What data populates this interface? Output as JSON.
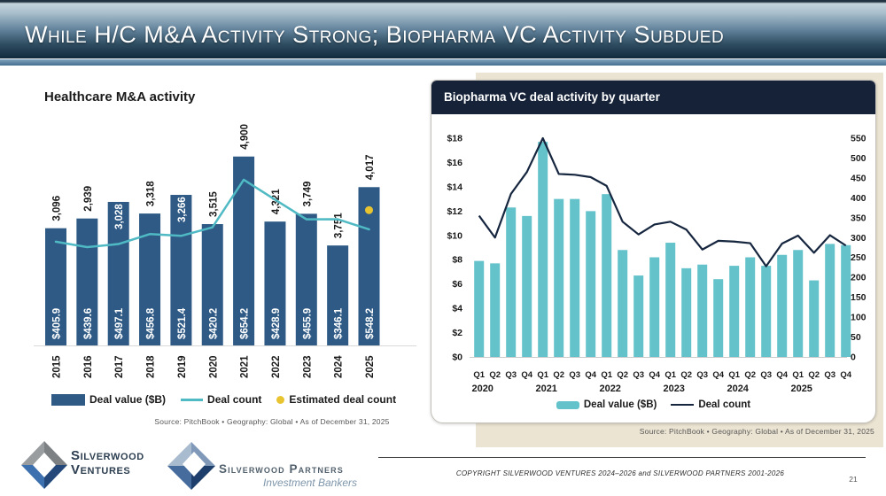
{
  "slide": {
    "title": "While H/C M&A Activity Strong; Biopharma VC Activity Subdued"
  },
  "chart_data": [
    {
      "type": "bar+line",
      "title": "Healthcare M&A activity",
      "categories": [
        "2015",
        "2016",
        "2017",
        "2018",
        "2019",
        "2020",
        "2021",
        "2022",
        "2023",
        "2024",
        "2025"
      ],
      "bar_series": {
        "name": "Deal value ($B)",
        "values": [
          405.9,
          439.6,
          497.1,
          456.8,
          521.4,
          420.2,
          654.2,
          428.9,
          455.9,
          346.1,
          548.2
        ],
        "labels": [
          "$405.9",
          "$439.6",
          "$497.1",
          "$456.8",
          "$521.4",
          "$420.2",
          "$654.2",
          "$428.9",
          "$455.9",
          "$346.1",
          "$548.2"
        ]
      },
      "line_series": {
        "name": "Deal count",
        "values": [
          3096,
          2939,
          3028,
          3318,
          3266,
          3515,
          4900,
          4321,
          3749,
          3751,
          3455
        ]
      },
      "count_labels": [
        "3,096",
        "2,939",
        "3,028",
        "3,318",
        "3,266",
        "3,515",
        "4,900",
        "4,321",
        "3,749",
        "3,751",
        "4,017"
      ],
      "count_labels_inside": [
        false,
        false,
        true,
        false,
        true,
        false,
        false,
        false,
        false,
        false,
        false
      ],
      "estimated_point": {
        "name": "Estimated deal count",
        "year": "2025",
        "value": 4017
      },
      "legend": [
        "Deal value ($B)",
        "Deal count",
        "Estimated deal count"
      ],
      "source": "Source: PitchBook  •  Geography: Global  •  As of December 31, 2025",
      "ylim_bars": [
        0,
        700
      ],
      "ylim_counts": [
        2500,
        5000
      ],
      "grid": false
    },
    {
      "type": "bar+line",
      "title": "Biopharma VC deal activity by quarter",
      "quarters": [
        "Q1",
        "Q2",
        "Q3",
        "Q4",
        "Q1",
        "Q2",
        "Q3",
        "Q4",
        "Q1",
        "Q2",
        "Q3",
        "Q4",
        "Q1",
        "Q2",
        "Q3",
        "Q4",
        "Q1",
        "Q2",
        "Q3",
        "Q4",
        "Q1",
        "Q2",
        "Q3",
        "Q4"
      ],
      "years": [
        "2020",
        "2021",
        "2022",
        "2023",
        "2024",
        "2025"
      ],
      "bar_series": {
        "name": "Deal value ($B)",
        "values": [
          7.9,
          7.7,
          12.3,
          11.6,
          17.7,
          13.0,
          13.0,
          12.0,
          13.4,
          8.8,
          6.7,
          8.2,
          9.4,
          7.3,
          7.6,
          6.4,
          7.5,
          8.2,
          7.5,
          8.4,
          8.8,
          6.3,
          9.3,
          9.2
        ]
      },
      "line_series": {
        "name": "Deal count",
        "values": [
          355,
          300,
          410,
          465,
          550,
          460,
          458,
          452,
          430,
          340,
          308,
          333,
          340,
          320,
          270,
          292,
          290,
          286,
          228,
          285,
          305,
          262,
          306,
          280
        ]
      },
      "left_axis": {
        "label_prefix": "$",
        "ticks": [
          0,
          2,
          4,
          6,
          8,
          10,
          12,
          14,
          16,
          18
        ],
        "max": 18
      },
      "right_axis": {
        "ticks": [
          0,
          50,
          100,
          150,
          200,
          250,
          300,
          350,
          400,
          450,
          500,
          550
        ],
        "max": 550
      },
      "legend": [
        "Deal value ($B)",
        "Deal count"
      ],
      "source": "Source: PitchBook  •  Geography: Global  •  As of December 31, 2025",
      "grid": false
    }
  ],
  "footer": {
    "ventures": {
      "line1": "Silverwood",
      "line2": "Ventures"
    },
    "partners": {
      "line1": "Silverwood Partners",
      "line2": "Investment Bankers"
    },
    "copyright": "COPYRIGHT SILVERWOOD VENTURES 2024–2026 and SILVERWOOD PARTNERS 2001-2026",
    "page_number": "21"
  },
  "colors": {
    "bar_navy": "#2e5a85",
    "teal_line": "#4fb9c4",
    "teal_bar": "#64c2cb",
    "gold_dot": "#e9c431",
    "count_line_navy": "#16263f",
    "card_header_navy": "#152238",
    "beige_panel": "#ece4d2",
    "axis_gray": "#d9d9d9"
  }
}
